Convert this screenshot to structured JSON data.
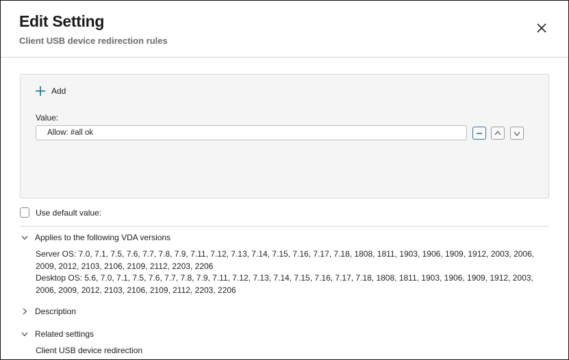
{
  "header": {
    "title": "Edit Setting",
    "subtitle": "Client USB device redirection rules"
  },
  "panel": {
    "add_label": "Add",
    "value_label": "Value:",
    "value": "Allow: #all ok",
    "accent_color": "#2a7f8c"
  },
  "use_default_label": "Use default value:",
  "sections": {
    "applies": {
      "label": "Applies to the following VDA versions",
      "expanded": true,
      "server_os": "Server OS: 7.0, 7.1, 7.5, 7.6, 7.7, 7.8, 7.9, 7.11, 7.12, 7.13, 7.14, 7.15, 7.16, 7.17, 7.18, 1808, 1811, 1903, 1906, 1909, 1912, 2003, 2006, 2009, 2012, 2103, 2106, 2109, 2112, 2203, 2206",
      "desktop_os": "Desktop OS: 5.6, 7.0, 7.1, 7.5, 7.6, 7.7, 7.8, 7.9, 7.11, 7.12, 7.13, 7.14, 7.15, 7.16, 7.17, 7.18, 1808, 1811, 1903, 1906, 1909, 1912, 2003, 2006, 2009, 2012, 2103, 2106, 2109, 2112, 2203, 2206"
    },
    "description": {
      "label": "Description",
      "expanded": false
    },
    "related": {
      "label": "Related settings",
      "expanded": true,
      "items": [
        "Client USB device redirection"
      ]
    }
  }
}
